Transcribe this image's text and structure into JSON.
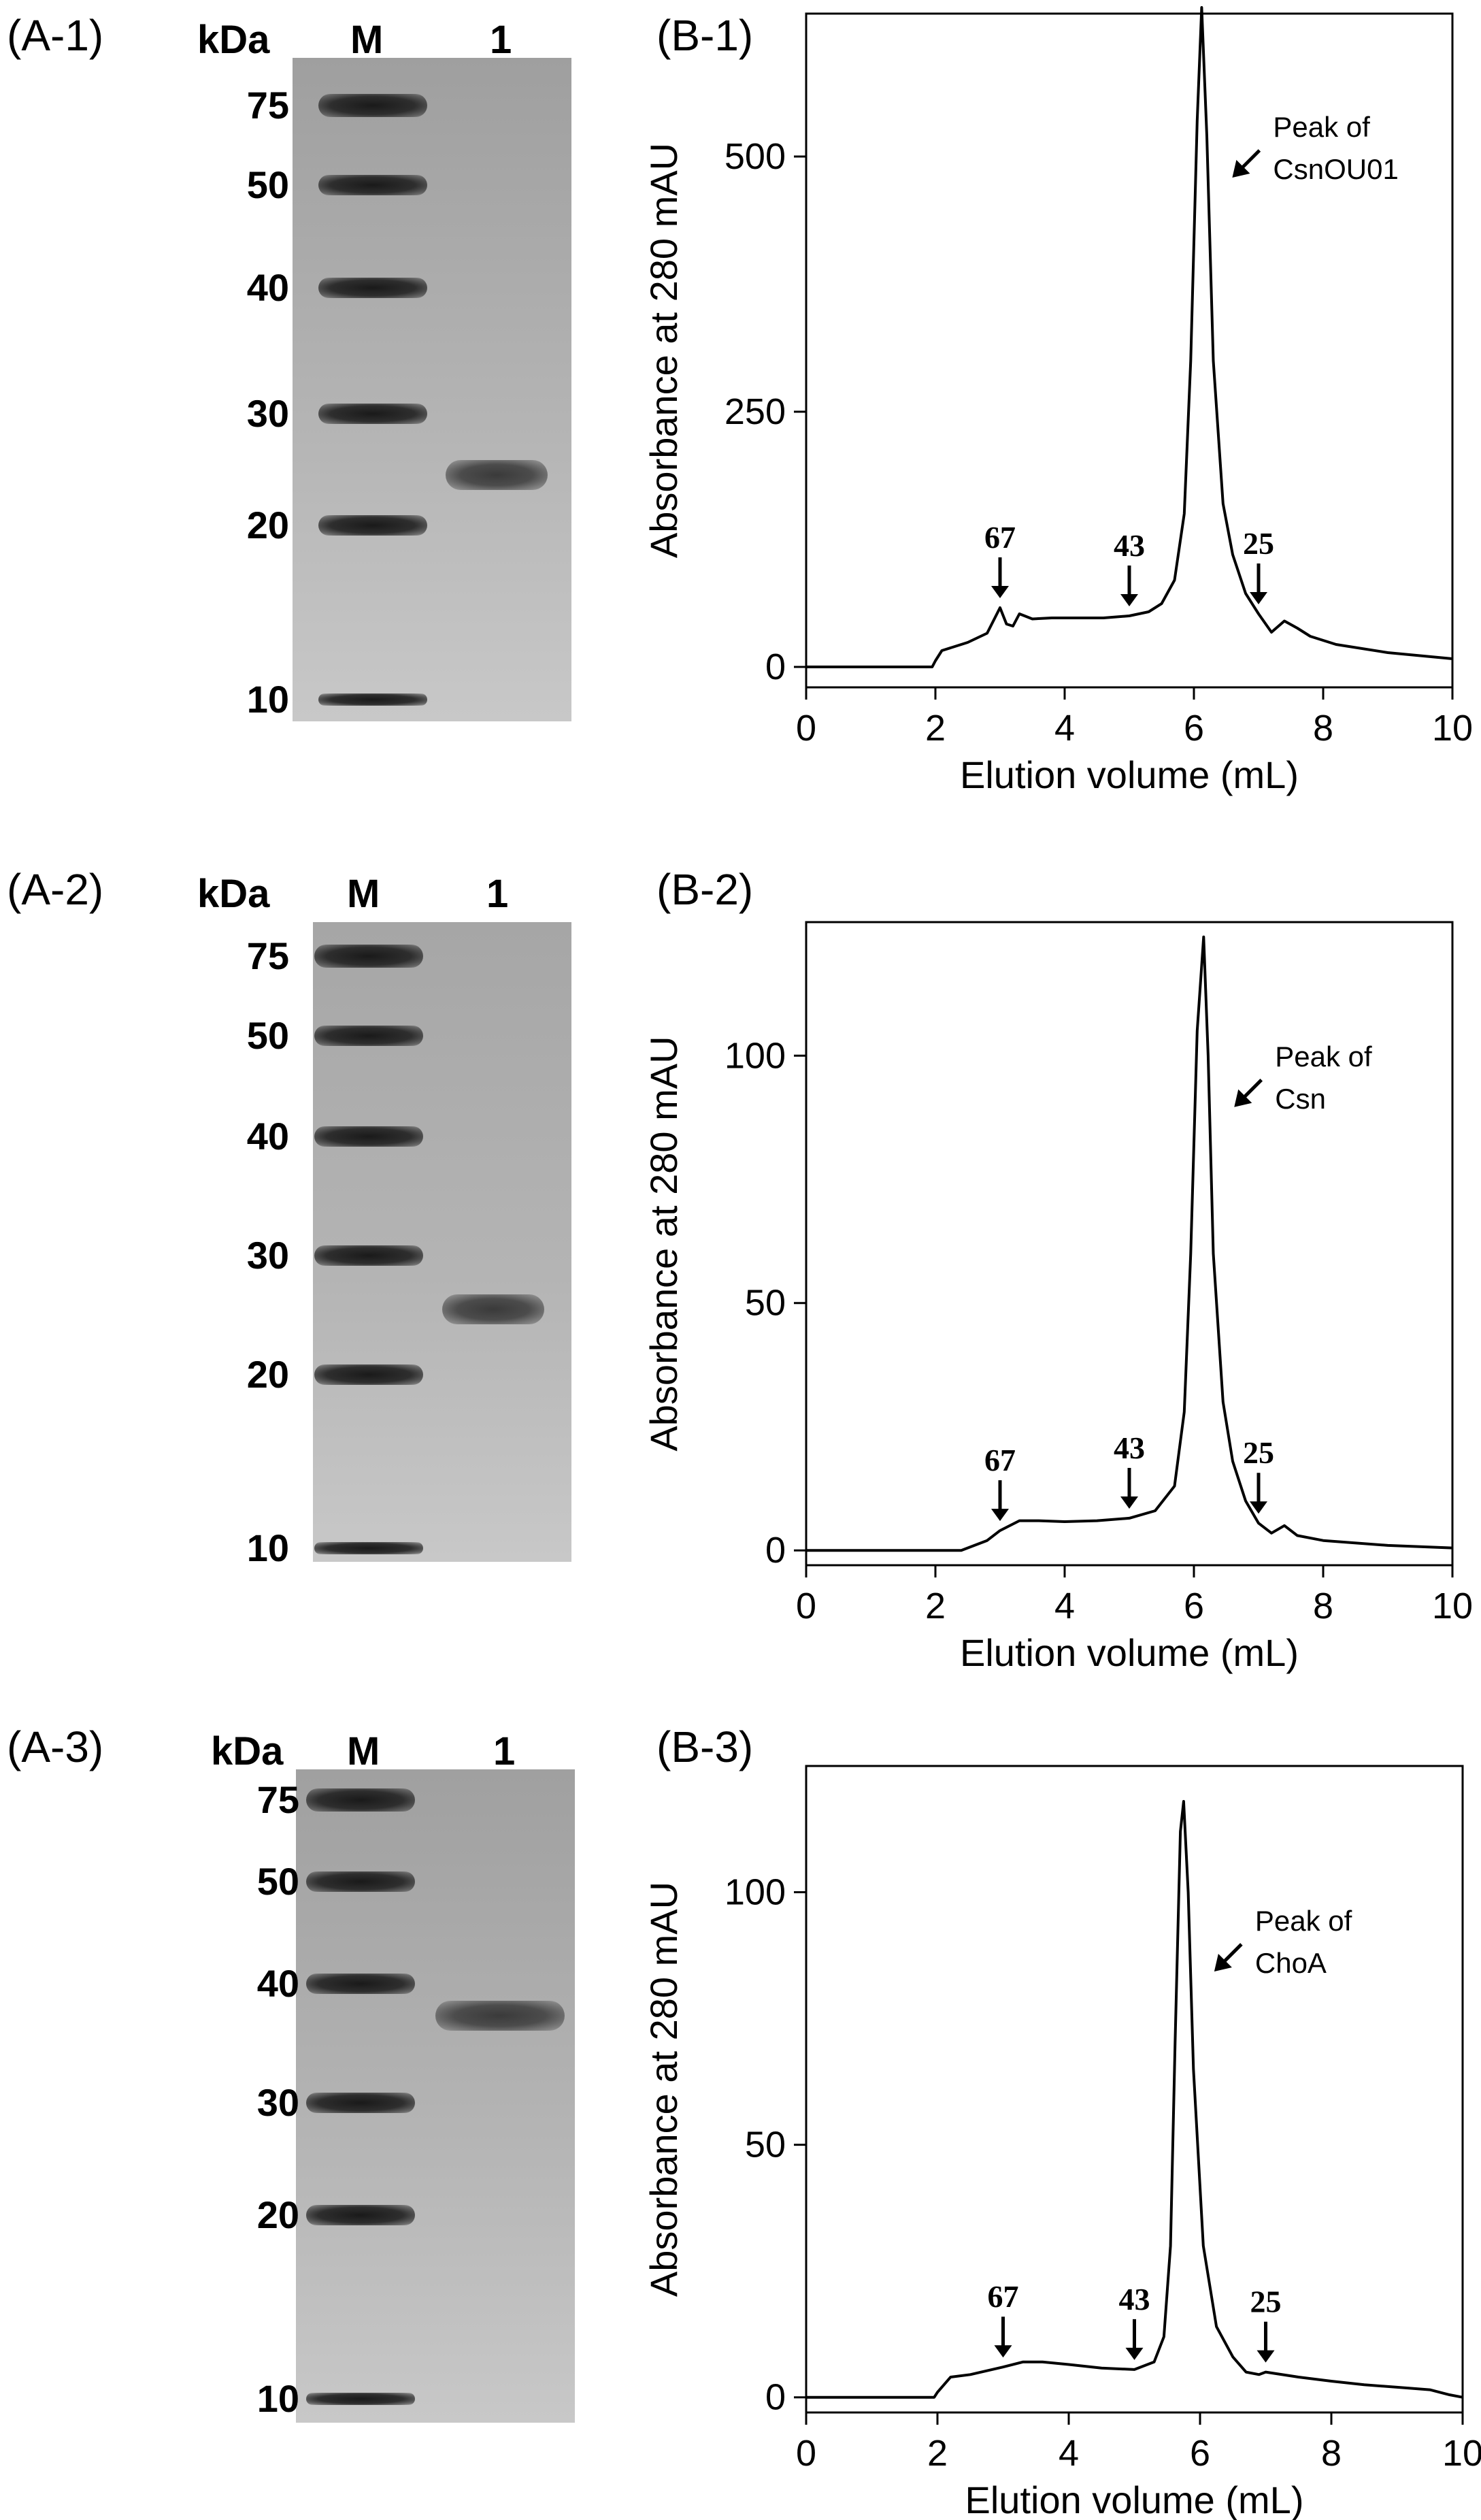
{
  "gels": [
    {
      "label": "(A-1)",
      "unit": "kDa",
      "lane_marker": "M",
      "lane_sample": "1",
      "ticks": [
        "75",
        "50",
        "40",
        "30",
        "20",
        "10"
      ],
      "sample_band_kDa": 24,
      "bg_color": "#9f9f9f"
    },
    {
      "label": "(A-2)",
      "unit": "kDa",
      "lane_marker": "M",
      "lane_sample": "1",
      "ticks": [
        "75",
        "50",
        "40",
        "30",
        "20",
        "10"
      ],
      "sample_band_kDa": 25,
      "bg_color": "#a6a6a6"
    },
    {
      "label": "(A-3)",
      "unit": "kDa",
      "lane_marker": "M",
      "lane_sample": "1",
      "ticks": [
        "75",
        "50",
        "40",
        "30",
        "20",
        "10"
      ],
      "sample_band_kDa": 37,
      "bg_color": "#a0a0a0"
    }
  ],
  "chart_data": [
    {
      "label": "(B-1)",
      "type": "line",
      "xlabel": "Elution volume (mL)",
      "ylabel": "Absorbance at 280 mAU",
      "xlim": [
        0,
        10
      ],
      "ylim": [
        -20,
        640
      ],
      "xticks": [
        0,
        2,
        4,
        6,
        8,
        10
      ],
      "yticks": [
        0,
        250,
        500
      ],
      "annotation": [
        "Peak of",
        "CsnOU01"
      ],
      "markers": [
        {
          "text": "67",
          "x": 3.0
        },
        {
          "text": "43",
          "x": 5.0
        },
        {
          "text": "25",
          "x": 7.0
        }
      ],
      "x": [
        0,
        1.95,
        2.0,
        2.1,
        2.5,
        2.8,
        3.0,
        3.1,
        3.2,
        3.3,
        3.5,
        3.8,
        4.2,
        4.6,
        5.0,
        5.3,
        5.5,
        5.7,
        5.85,
        5.95,
        6.05,
        6.12,
        6.2,
        6.3,
        6.45,
        6.6,
        6.8,
        7.0,
        7.2,
        7.4,
        7.6,
        7.8,
        8.2,
        9.0,
        10.0
      ],
      "y": [
        0,
        0,
        6,
        16,
        24,
        33,
        58,
        42,
        40,
        52,
        47,
        48,
        48,
        48,
        50,
        54,
        62,
        85,
        150,
        300,
        535,
        646,
        520,
        300,
        160,
        110,
        72,
        52,
        34,
        45,
        38,
        30,
        22,
        14,
        8
      ]
    },
    {
      "label": "(B-2)",
      "type": "line",
      "xlabel": "Elution volume (mL)",
      "ylabel": "Absorbance at 280 mAU",
      "xlim": [
        0,
        10
      ],
      "ylim": [
        -3,
        127
      ],
      "xticks": [
        0,
        2,
        4,
        6,
        8,
        10
      ],
      "yticks": [
        0,
        50,
        100
      ],
      "annotation": [
        "Peak of",
        "Csn"
      ],
      "markers": [
        {
          "text": "67",
          "x": 3.0
        },
        {
          "text": "43",
          "x": 5.0
        },
        {
          "text": "25",
          "x": 7.0
        }
      ],
      "x": [
        0,
        2.4,
        2.5,
        2.8,
        3.0,
        3.3,
        3.6,
        4.0,
        4.5,
        5.0,
        5.4,
        5.7,
        5.85,
        5.95,
        6.05,
        6.15,
        6.22,
        6.3,
        6.45,
        6.6,
        6.8,
        7.0,
        7.2,
        7.4,
        7.6,
        8.0,
        9.0,
        10.0
      ],
      "y": [
        0,
        0,
        0.5,
        2,
        4,
        6,
        6,
        5.8,
        6,
        6.5,
        8,
        13,
        28,
        60,
        105,
        124,
        100,
        60,
        30,
        18,
        10,
        5.5,
        3.5,
        5,
        3,
        2,
        1,
        0.5
      ]
    },
    {
      "label": "(B-3)",
      "type": "line",
      "xlabel": "Elution volume (mL)",
      "ylabel": "Absorbance at 280 mAU",
      "xlim": [
        0,
        10
      ],
      "ylim": [
        -3,
        125
      ],
      "xticks": [
        0,
        2,
        4,
        6,
        8,
        10
      ],
      "yticks": [
        0,
        50,
        100
      ],
      "annotation": [
        "Peak of",
        "ChoA"
      ],
      "markers": [
        {
          "text": "67",
          "x": 3.0
        },
        {
          "text": "43",
          "x": 5.0
        },
        {
          "text": "25",
          "x": 7.0
        }
      ],
      "x": [
        0,
        1.95,
        2.0,
        2.2,
        2.5,
        3.0,
        3.3,
        3.6,
        4.0,
        4.5,
        5.0,
        5.3,
        5.45,
        5.55,
        5.62,
        5.7,
        5.75,
        5.82,
        5.9,
        6.05,
        6.25,
        6.5,
        6.7,
        6.9,
        7.0,
        7.5,
        8.0,
        8.5,
        9.0,
        9.5,
        9.8,
        10.0
      ],
      "y": [
        0,
        0,
        1,
        4,
        4.5,
        6,
        7,
        7,
        6.5,
        5.8,
        5.5,
        7,
        12,
        30,
        70,
        112,
        118,
        100,
        65,
        30,
        14,
        8,
        5,
        4.5,
        5,
        4,
        3.2,
        2.5,
        2,
        1.5,
        0.5,
        0
      ]
    }
  ]
}
